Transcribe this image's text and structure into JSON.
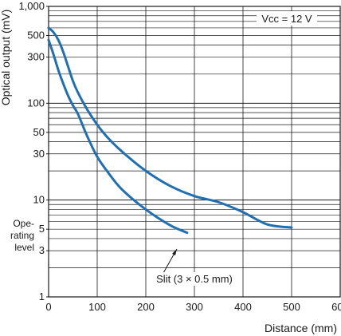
{
  "chart_data": {
    "type": "line",
    "ylabel": "Optical output (mV)",
    "xlabel": "Distance (mm)",
    "x_ticks": [
      "0",
      "100",
      "200",
      "300",
      "400",
      "500",
      "600"
    ],
    "y_ticks": [
      {
        "value": 1,
        "label": "1"
      },
      {
        "value": 3,
        "label": "3"
      },
      {
        "value": 5,
        "label": "5"
      },
      {
        "value": 10,
        "label": "10"
      },
      {
        "value": 30,
        "label": "30"
      },
      {
        "value": 50,
        "label": "50"
      },
      {
        "value": 100,
        "label": "100"
      },
      {
        "value": 300,
        "label": "300"
      },
      {
        "value": 500,
        "label": "500"
      },
      {
        "value": 1000,
        "label": "1,000"
      }
    ],
    "xlim": [
      0,
      600
    ],
    "ylim": [
      1,
      1000
    ],
    "y_scale": "log",
    "grid": true,
    "series_color": "#1f6fb4",
    "series": [
      {
        "points": [
          [
            0,
            600
          ],
          [
            10,
            540
          ],
          [
            20,
            450
          ],
          [
            30,
            340
          ],
          [
            40,
            240
          ],
          [
            50,
            170
          ],
          [
            60,
            130
          ],
          [
            80,
            85
          ],
          [
            100,
            60
          ],
          [
            120,
            45
          ],
          [
            150,
            32
          ],
          [
            200,
            20
          ],
          [
            250,
            14
          ],
          [
            300,
            11
          ],
          [
            350,
            9.5
          ],
          [
            400,
            7.5
          ],
          [
            450,
            5.6
          ],
          [
            500,
            5.2
          ]
        ]
      },
      {
        "points": [
          [
            0,
            450
          ],
          [
            10,
            320
          ],
          [
            20,
            220
          ],
          [
            30,
            160
          ],
          [
            40,
            120
          ],
          [
            50,
            95
          ],
          [
            60,
            78
          ],
          [
            80,
            45
          ],
          [
            100,
            28
          ],
          [
            120,
            20
          ],
          [
            150,
            13
          ],
          [
            200,
            8
          ],
          [
            250,
            5.5
          ],
          [
            285,
            4.6
          ]
        ]
      }
    ],
    "annotations": {
      "vcc": "Vcc = 12 V",
      "slit": "Slit (3 × 0.5 mm)",
      "operating_level": [
        "Ope-",
        "rating",
        "level"
      ]
    }
  }
}
